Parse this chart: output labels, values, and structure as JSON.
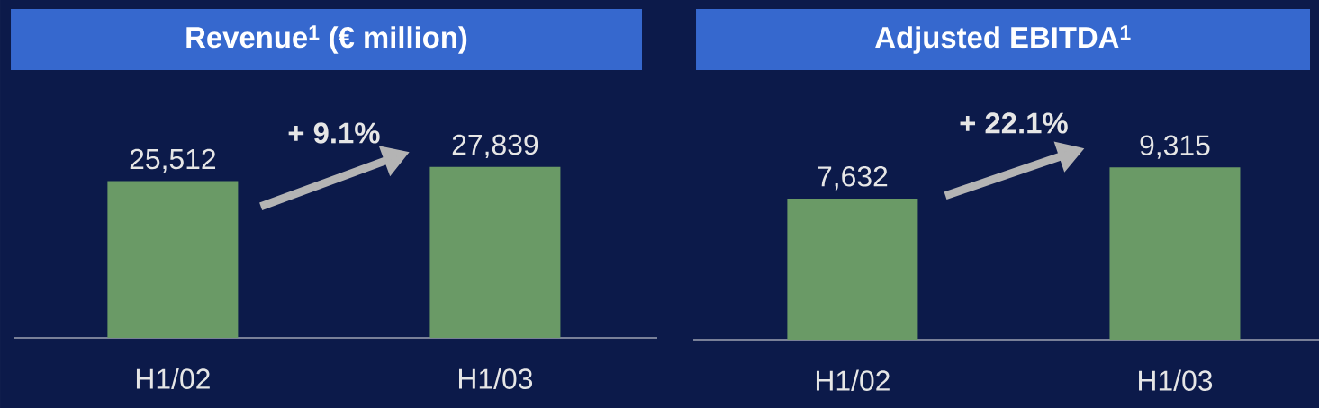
{
  "chart_data": [
    {
      "type": "bar",
      "title": "Revenue$^{1}$ (€ million)",
      "categories": [
        "H1/02",
        "H1/03"
      ],
      "values": [
        25512,
        27839
      ],
      "value_labels": [
        "25,512",
        "27,839"
      ],
      "color": "#6a9a66",
      "annotations": [
        "+ 9.1%"
      ]
    },
    {
      "type": "bar",
      "title": "Adjusted EBITDA$^{1}$",
      "categories": [
        "H1/02",
        "H1/03"
      ],
      "values": [
        7632,
        9315
      ],
      "value_labels": [
        "7,632",
        "9,315"
      ],
      "color": "#6a9a66",
      "annotations": [
        "+ 22.1%"
      ]
    }
  ]
}
